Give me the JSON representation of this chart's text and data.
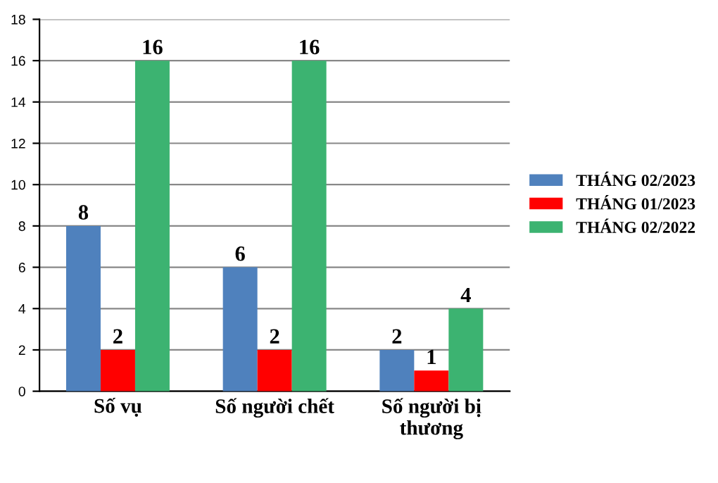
{
  "chart_data": {
    "type": "bar",
    "categories": [
      "Số vụ",
      "Số người chết",
      "Số người bị\nthương"
    ],
    "series": [
      {
        "name": "THÁNG 02/2023",
        "color": "#4f81bd",
        "values": [
          8,
          6,
          2
        ]
      },
      {
        "name": "THÁNG 01/2023",
        "color": "#ff0000",
        "values": [
          2,
          2,
          1
        ]
      },
      {
        "name": "THÁNG 02/2022",
        "color": "#3cb371",
        "values": [
          16,
          16,
          4
        ]
      }
    ],
    "ylim": [
      0,
      18
    ],
    "yticks": [
      0,
      2,
      4,
      6,
      8,
      10,
      12,
      14,
      16,
      18
    ],
    "grid": "y",
    "legend": "right",
    "data_labels": true
  }
}
